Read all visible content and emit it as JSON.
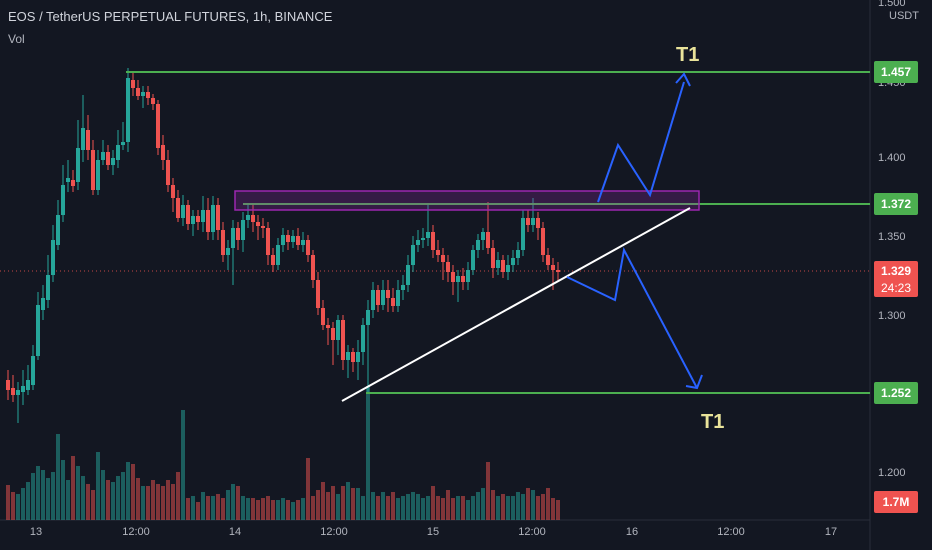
{
  "header": {
    "symbol_title": "EOS / TetherUS PERPETUAL FUTURES, 1h, BINANCE",
    "volume_label": "Vol"
  },
  "axis": {
    "currency": "USDT",
    "y_ticks": [
      "1.500",
      "1.450",
      "1.400",
      "1.350",
      "1.300",
      "1.200"
    ],
    "x_ticks": [
      "13",
      "12:00",
      "14",
      "12:00",
      "15",
      "12:00",
      "16",
      "12:00",
      "17"
    ]
  },
  "price_tags": {
    "target_high": "1.457",
    "resistance": "1.372",
    "last_price": "1.329",
    "countdown": "24:23",
    "target_low": "1.252",
    "volume": "1.7M"
  },
  "annotations": {
    "target_up": "T1",
    "target_down": "T1"
  },
  "colors": {
    "background": "#131722",
    "up": "#26a69a",
    "down": "#ef5350",
    "level_line": "#4caf50",
    "arrow": "#2962ff",
    "zone": "#9c27b0",
    "label_text": "#e9e39a"
  },
  "chart_data": {
    "type": "candlestick",
    "title": "EOS / TetherUS PERPETUAL FUTURES, 1h, BINANCE",
    "levels": [
      1.457,
      1.372,
      1.252
    ],
    "zone": [
      1.365,
      1.38
    ],
    "ylim": [
      1.16,
      1.505
    ]
  }
}
